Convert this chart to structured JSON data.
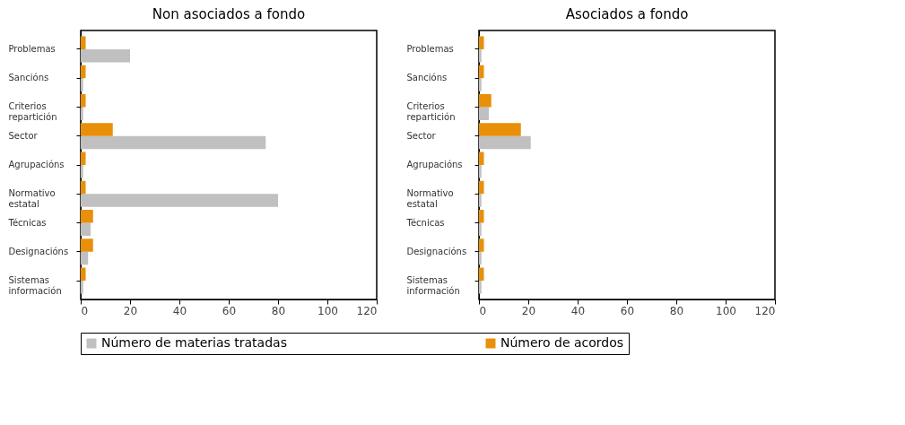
{
  "chart_data": [
    {
      "type": "bar",
      "orientation": "horizontal",
      "title": "Non asociados a fondo",
      "categories": [
        "Problemas",
        "Sancións",
        "Criterios repartición",
        "Sector",
        "Agrupacións",
        "Normativo estatal",
        "Técnicas",
        "Designacións",
        "Sistemas información"
      ],
      "series": [
        {
          "name": "Número de materias tratadas",
          "color": "#c0c0c0",
          "values": [
            20,
            1,
            1,
            75,
            1,
            80,
            4,
            3,
            1
          ]
        },
        {
          "name": "Número de acordos",
          "color": "#e8900a",
          "values": [
            2,
            2,
            2,
            13,
            2,
            2,
            5,
            5,
            2
          ]
        }
      ],
      "xlim": [
        0,
        120
      ],
      "xticks": [
        0,
        20,
        40,
        60,
        80,
        100,
        120
      ],
      "legend": "bottom",
      "grid": false
    },
    {
      "type": "bar",
      "orientation": "horizontal",
      "title": "Asociados a fondo",
      "categories": [
        "Problemas",
        "Sancións",
        "Criterios repartición",
        "Sector",
        "Agrupacións",
        "Normativo estatal",
        "Técnicas",
        "Designacións",
        "Sistemas información"
      ],
      "series": [
        {
          "name": "Número de materias tratadas",
          "color": "#c0c0c0",
          "values": [
            1,
            1,
            4,
            21,
            1,
            1,
            1,
            1,
            1
          ]
        },
        {
          "name": "Número de acordos",
          "color": "#e8900a",
          "values": [
            2,
            2,
            5,
            17,
            2,
            2,
            2,
            2,
            2
          ]
        }
      ],
      "xlim": [
        0,
        120
      ],
      "xticks": [
        0,
        20,
        40,
        60,
        80,
        100,
        120
      ],
      "legend": "bottom",
      "grid": false
    }
  ]
}
